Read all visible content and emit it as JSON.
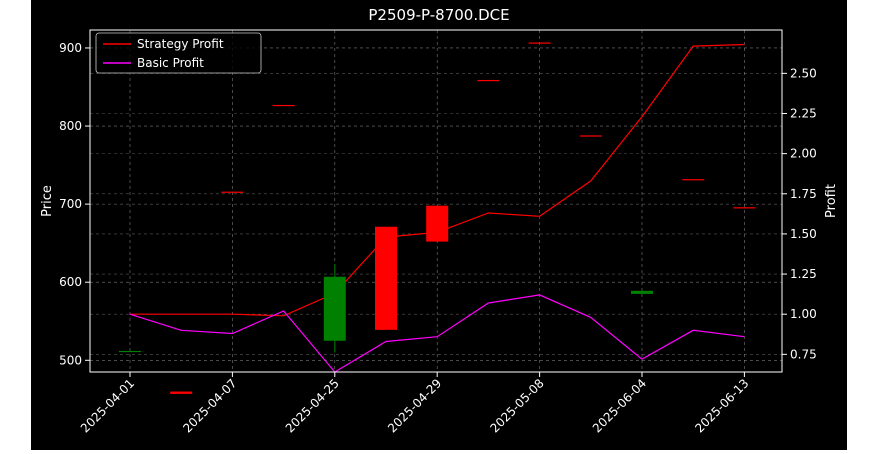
{
  "chart_data": {
    "type": "candlestick",
    "title": "P2509-P-8700.DCE",
    "ylabel_left": "Price",
    "ylabel_right": "Profit",
    "y_left_range": [
      485,
      923
    ],
    "y_right_range": [
      0.64,
      2.77
    ],
    "y_left_ticks": [
      500,
      600,
      700,
      800,
      900
    ],
    "y_right_ticks": [
      0.75,
      1.0,
      1.25,
      1.5,
      1.75,
      2.0,
      2.25,
      2.5
    ],
    "x_tick_labels": [
      "2025-04-01",
      "2025-04-07",
      "2025-04-25",
      "2025-04-29",
      "2025-05-08",
      "2025-06-04",
      "2025-06-13"
    ],
    "grid": true,
    "legend_position": "top-left",
    "candles": [
      {
        "open": 511,
        "close": 512,
        "high": 512,
        "low": 511,
        "color": "#008000"
      },
      {
        "open": 460,
        "close": 457,
        "high": 460,
        "low": 457,
        "color": "#ff0000"
      },
      {
        "open": 716,
        "close": 715,
        "high": 716,
        "low": 715,
        "color": "#ff0000"
      },
      {
        "open": 827,
        "close": 826,
        "high": 827,
        "low": 826,
        "color": "#ff0000"
      },
      {
        "open": 525,
        "close": 607,
        "high": 623,
        "low": 510,
        "color": "#008000"
      },
      {
        "open": 671,
        "close": 539,
        "high": 671,
        "low": 539,
        "color": "#ff0000"
      },
      {
        "open": 698,
        "close": 652,
        "high": 698,
        "low": 652,
        "color": "#ff0000"
      },
      {
        "open": 859,
        "close": 858,
        "high": 859,
        "low": 858,
        "color": "#ff0000"
      },
      {
        "open": 907,
        "close": 906,
        "high": 907,
        "low": 906,
        "color": "#ff0000"
      },
      {
        "open": 788,
        "close": 787,
        "high": 788,
        "low": 787,
        "color": "#ff0000"
      },
      {
        "open": 585,
        "close": 589,
        "high": 589,
        "low": 585,
        "color": "#008000"
      },
      {
        "open": 732,
        "close": 731,
        "high": 732,
        "low": 731,
        "color": "#ff0000"
      },
      {
        "open": 696,
        "close": 695,
        "high": 696,
        "low": 695,
        "color": "#ff0000"
      }
    ],
    "series": [
      {
        "name": "Strategy Profit",
        "color": "#ff0000",
        "values": [
          1.0,
          1.0,
          1.0,
          0.99,
          1.13,
          1.48,
          1.51,
          1.63,
          1.61,
          1.83,
          2.23,
          2.67,
          2.68
        ]
      },
      {
        "name": "Basic Profit",
        "color": "#ff00ff",
        "values": [
          1.0,
          0.9,
          0.88,
          1.02,
          0.64,
          0.83,
          0.86,
          1.07,
          1.12,
          0.98,
          0.72,
          0.9,
          0.86
        ]
      }
    ]
  }
}
